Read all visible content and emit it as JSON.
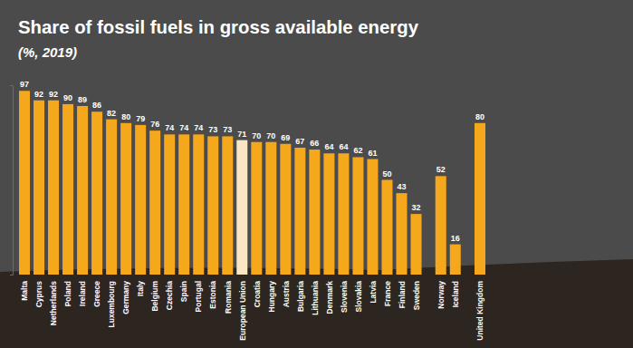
{
  "chart_data": {
    "type": "bar",
    "title": "Share of fossil fuels in gross available energy",
    "subtitle": "(%, 2019)",
    "categories": [
      "Malta",
      "Cyprus",
      "Netherlands",
      "Poland",
      "Ireland",
      "Greece",
      "Luxembourg",
      "Germany",
      "Italy",
      "Belgium",
      "Czechia",
      "Spain",
      "Portugal",
      "Estonia",
      "Romania",
      "European Union",
      "Croatia",
      "Hungary",
      "Austria",
      "Bulgaria",
      "Lithuania",
      "Denmark",
      "Slovenia",
      "Slovakia",
      "Latvia",
      "France",
      "Finland",
      "Sweden",
      "Norway",
      "Iceland",
      "United Kingdom"
    ],
    "values": [
      97,
      92,
      92,
      90,
      89,
      86,
      82,
      80,
      79,
      76,
      74,
      74,
      74,
      73,
      73,
      71,
      70,
      70,
      69,
      67,
      66,
      64,
      64,
      62,
      61,
      50,
      43,
      32,
      52,
      16,
      80
    ],
    "colors": [
      "#f6a81c",
      "#f6a81c",
      "#f6a81c",
      "#f6a81c",
      "#f6a81c",
      "#f6a81c",
      "#f6a81c",
      "#f6a81c",
      "#f6a81c",
      "#f6a81c",
      "#f6a81c",
      "#f6a81c",
      "#f6a81c",
      "#f6a81c",
      "#f6a81c",
      "#fbe6c4",
      "#f6a81c",
      "#f6a81c",
      "#f6a81c",
      "#f6a81c",
      "#f6a81c",
      "#f6a81c",
      "#f6a81c",
      "#f6a81c",
      "#f6a81c",
      "#f6a81c",
      "#f6a81c",
      "#f6a81c",
      "#f6a81c",
      "#f6a81c",
      "#f6a81c"
    ],
    "ylim": [
      0,
      100
    ],
    "yticks": [
      0,
      100
    ],
    "grid": false,
    "data_labels": true,
    "tick_labels": "x"
  }
}
